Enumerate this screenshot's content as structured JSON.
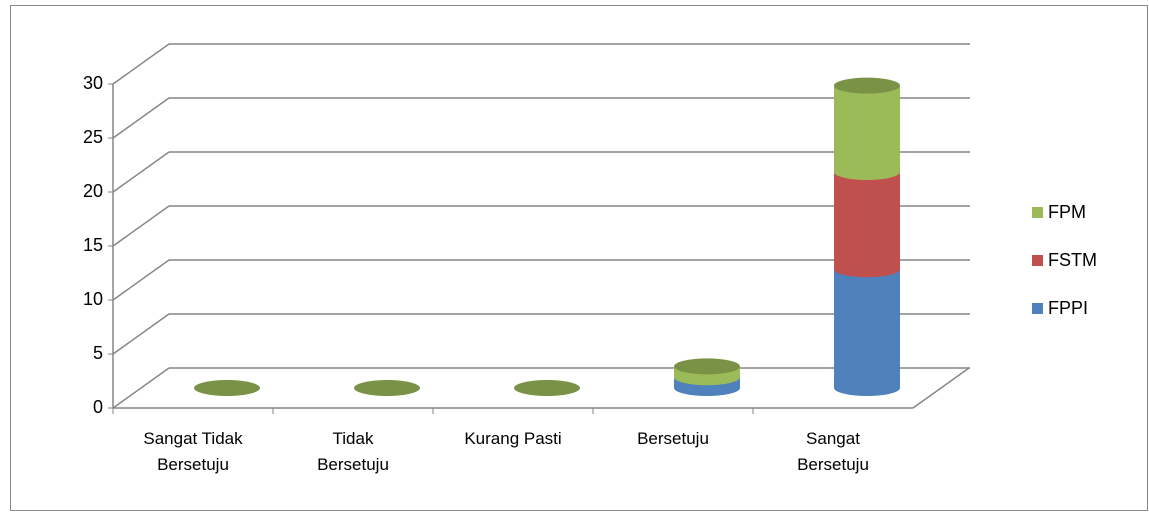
{
  "chart_data": {
    "type": "bar3d_stacked_cylinder",
    "categories": [
      "Sangat Tidak Bersetuju",
      "Tidak Bersetuju",
      "Kurang Pasti",
      "Bersetuju",
      "Sangat Bersetuju"
    ],
    "series": [
      {
        "name": "FPPI",
        "color": "#4f81bd",
        "values": [
          0,
          0,
          0,
          1,
          11
        ]
      },
      {
        "name": "FSTM",
        "color": "#c0504d",
        "values": [
          0,
          0,
          0,
          0,
          9
        ]
      },
      {
        "name": "FPM",
        "color": "#9bbb59",
        "values": [
          0,
          0,
          0,
          1,
          8
        ]
      }
    ],
    "ylim": [
      0,
      30
    ],
    "yticks": [
      0,
      5,
      10,
      15,
      20,
      25,
      30
    ],
    "grid": true,
    "legend": "right"
  }
}
